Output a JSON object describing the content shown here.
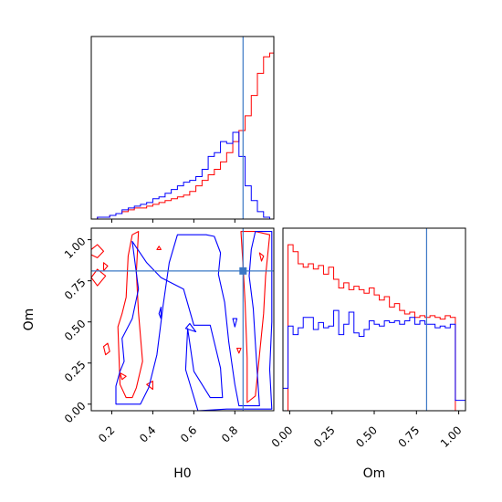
{
  "colors": {
    "sample_a": "#ff0000",
    "sample_b": "#0000ff",
    "truth": "#3b78c5"
  },
  "chart_data": {
    "type": "corner",
    "parameters": [
      "H0",
      "Om"
    ],
    "truth": {
      "H0": 0.84,
      "Om": 0.81
    },
    "panels": [
      {
        "id": "H0-marginal",
        "type": "histogram-step",
        "xlim": [
          0.1,
          0.99
        ],
        "y_ticks_shown": false,
        "x_tick_labels_shown": false,
        "bins": [
          0.1,
          0.13,
          0.16,
          0.19,
          0.22,
          0.25,
          0.28,
          0.31,
          0.34,
          0.37,
          0.4,
          0.43,
          0.46,
          0.49,
          0.52,
          0.55,
          0.58,
          0.61,
          0.64,
          0.67,
          0.7,
          0.73,
          0.76,
          0.79,
          0.82,
          0.85,
          0.88,
          0.91,
          0.94,
          0.97,
          0.99
        ],
        "series": [
          {
            "name": "",
            "color": "#ff0000",
            "counts": [
              0,
              1,
              1,
              2,
              3,
              4,
              5,
              6,
              6,
              7,
              8,
              9,
              10,
              11,
              12,
              13,
              15,
              18,
              21,
              24,
              27,
              31,
              36,
              42,
              48,
              56,
              67,
              79,
              88,
              90
            ]
          },
          {
            "name": "",
            "color": "#0000ff",
            "counts": [
              0,
              1,
              1,
              2,
              3,
              5,
              6,
              7,
              8,
              9,
              11,
              12,
              14,
              16,
              18,
              20,
              21,
              23,
              27,
              34,
              36,
              42,
              41,
              47,
              34,
              18,
              10,
              4,
              1,
              0
            ]
          }
        ]
      },
      {
        "id": "H0-Om-contour",
        "type": "contour",
        "xlabel": "H0",
        "ylabel": "Om",
        "xlim": [
          0.1,
          0.99
        ],
        "ylim": [
          -0.04,
          1.07
        ],
        "x_ticks": [
          0.2,
          0.4,
          0.6,
          0.8
        ],
        "x_tick_labels": [
          "0.2",
          "0.4",
          "0.6",
          "0.8"
        ],
        "y_ticks": [
          0.0,
          0.25,
          0.5,
          0.75,
          1.0
        ],
        "y_tick_labels": [
          "0.00",
          "0.25",
          "0.50",
          "0.75",
          "1.00"
        ],
        "series": [
          {
            "name": "",
            "color": "#ff0000",
            "contours": [
              [
                [
                  0.23,
                  0.47
                ],
                [
                  0.24,
                  0.12
                ],
                [
                  0.27,
                  0.04
                ],
                [
                  0.3,
                  0.04
                ],
                [
                  0.32,
                  0.1
                ],
                [
                  0.35,
                  0.26
                ],
                [
                  0.33,
                  0.56
                ],
                [
                  0.32,
                  0.8
                ],
                [
                  0.33,
                  1.05
                ],
                [
                  0.3,
                  1.03
                ],
                [
                  0.28,
                  0.9
                ],
                [
                  0.27,
                  0.65
                ],
                [
                  0.25,
                  0.55
                ]
              ],
              [
                [
                  0.83,
                  1.05
                ],
                [
                  0.84,
                  0.84
                ],
                [
                  0.85,
                  0.62
                ],
                [
                  0.86,
                  0.28
                ],
                [
                  0.86,
                  0.01
                ],
                [
                  0.9,
                  0.05
                ],
                [
                  0.92,
                  0.3
                ],
                [
                  0.94,
                  0.55
                ],
                [
                  0.95,
                  0.78
                ],
                [
                  0.97,
                  1.03
                ],
                [
                  0.9,
                  1.05
                ]
              ],
              [
                [
                  0.08,
                  0.92
                ],
                [
                  0.13,
                  0.97
                ],
                [
                  0.16,
                  0.93
                ],
                [
                  0.13,
                  0.89
                ]
              ],
              [
                [
                  0.1,
                  0.77
                ],
                [
                  0.13,
                  0.82
                ],
                [
                  0.17,
                  0.78
                ],
                [
                  0.13,
                  0.72
                ]
              ],
              [
                [
                  0.16,
                  0.86
                ],
                [
                  0.18,
                  0.84
                ],
                [
                  0.16,
                  0.81
                ]
              ],
              [
                [
                  0.16,
                  0.35
                ],
                [
                  0.18,
                  0.37
                ],
                [
                  0.19,
                  0.32
                ],
                [
                  0.17,
                  0.3
                ]
              ],
              [
                [
                  0.24,
                  0.19
                ],
                [
                  0.27,
                  0.17
                ],
                [
                  0.25,
                  0.15
                ]
              ],
              [
                [
                  0.37,
                  0.12
                ],
                [
                  0.4,
                  0.14
                ],
                [
                  0.4,
                  0.09
                ]
              ],
              [
                [
                  0.42,
                  0.94
                ],
                [
                  0.43,
                  0.96
                ],
                [
                  0.44,
                  0.94
                ]
              ],
              [
                [
                  0.82,
                  0.31
                ],
                [
                  0.81,
                  0.34
                ],
                [
                  0.83,
                  0.34
                ]
              ],
              [
                [
                  0.92,
                  0.92
                ],
                [
                  0.94,
                  0.9
                ],
                [
                  0.93,
                  0.87
                ]
              ]
            ]
          },
          {
            "name": "",
            "color": "#0000ff",
            "contours": [
              [
                [
                  0.24,
                  0.2
                ],
                [
                  0.22,
                  0.11
                ],
                [
                  0.22,
                  0.0
                ],
                [
                  0.34,
                  0.0
                ],
                [
                  0.38,
                  0.1
                ],
                [
                  0.42,
                  0.3
                ],
                [
                  0.45,
                  0.6
                ],
                [
                  0.48,
                  0.86
                ],
                [
                  0.52,
                  1.03
                ],
                [
                  0.66,
                  1.03
                ],
                [
                  0.7,
                  1.02
                ],
                [
                  0.73,
                  0.92
                ],
                [
                  0.72,
                  0.79
                ],
                [
                  0.75,
                  0.62
                ],
                [
                  0.77,
                  0.38
                ],
                [
                  0.8,
                  0.12
                ],
                [
                  0.82,
                  -0.01
                ],
                [
                  0.92,
                  -0.01
                ],
                [
                  0.91,
                  0.18
                ],
                [
                  0.9,
                  0.37
                ],
                [
                  0.89,
                  0.58
                ],
                [
                  0.87,
                  0.78
                ],
                [
                  0.88,
                  0.94
                ],
                [
                  0.9,
                  1.05
                ],
                [
                  0.98,
                  1.05
                ],
                [
                  0.98,
                  0.5
                ],
                [
                  0.97,
                  0.21
                ],
                [
                  0.98,
                  -0.03
                ],
                [
                  0.76,
                  -0.03
                ],
                [
                  0.62,
                  -0.04
                ],
                [
                  0.56,
                  0.21
                ],
                [
                  0.57,
                  0.46
                ],
                [
                  0.6,
                  0.2
                ],
                [
                  0.68,
                  0.04
                ],
                [
                  0.74,
                  0.04
                ],
                [
                  0.73,
                  0.22
                ],
                [
                  0.68,
                  0.48
                ],
                [
                  0.6,
                  0.48
                ],
                [
                  0.55,
                  0.7
                ],
                [
                  0.44,
                  0.77
                ],
                [
                  0.37,
                  0.86
                ],
                [
                  0.3,
                  0.99
                ],
                [
                  0.33,
                  0.7
                ],
                [
                  0.3,
                  0.52
                ],
                [
                  0.25,
                  0.4
                ],
                [
                  0.26,
                  0.26
                ]
              ],
              [
                [
                  0.56,
                  0.46
                ],
                [
                  0.58,
                  0.49
                ],
                [
                  0.61,
                  0.44
                ]
              ],
              [
                [
                  0.79,
                  0.52
                ],
                [
                  0.8,
                  0.47
                ],
                [
                  0.81,
                  0.52
                ]
              ],
              [
                [
                  0.43,
                  0.55
                ],
                [
                  0.44,
                  0.59
                ],
                [
                  0.44,
                  0.52
                ]
              ]
            ]
          }
        ]
      },
      {
        "id": "Om-marginal",
        "type": "histogram-step",
        "xlabel": "Om",
        "xlim": [
          -0.04,
          1.04
        ],
        "x_ticks": [
          0.0,
          0.25,
          0.5,
          0.75,
          1.0
        ],
        "x_tick_labels": [
          "0.00",
          "0.25",
          "0.50",
          "0.75",
          "1.00"
        ],
        "y_ticks_shown": false,
        "bins": [
          -0.04,
          -0.01,
          0.02,
          0.05,
          0.08,
          0.11,
          0.14,
          0.17,
          0.2,
          0.23,
          0.26,
          0.29,
          0.32,
          0.35,
          0.38,
          0.41,
          0.44,
          0.47,
          0.5,
          0.53,
          0.56,
          0.59,
          0.62,
          0.65,
          0.68,
          0.71,
          0.74,
          0.77,
          0.8,
          0.83,
          0.86,
          0.89,
          0.92,
          0.95,
          0.98,
          1.01,
          1.04
        ],
        "series": [
          {
            "name": "",
            "color": "#ff0000",
            "counts": [
              0,
              96,
              92,
              85,
              83,
              85,
              82,
              84,
              79,
              83,
              76,
              71,
              74,
              70,
              72,
              70,
              68,
              71,
              67,
              64,
              66,
              60,
              62,
              58,
              56,
              57,
              54,
              55,
              54,
              55,
              54,
              53,
              55,
              54,
              0,
              0
            ]
          },
          {
            "name": "",
            "color": "#0000ff",
            "counts": [
              13,
              49,
              44,
              48,
              54,
              54,
              47,
              51,
              48,
              49,
              58,
              44,
              50,
              57,
              45,
              43,
              47,
              52,
              50,
              49,
              52,
              51,
              52,
              50,
              52,
              54,
              50,
              52,
              50,
              50,
              48,
              49,
              48,
              50,
              6,
              6
            ]
          }
        ]
      }
    ]
  }
}
